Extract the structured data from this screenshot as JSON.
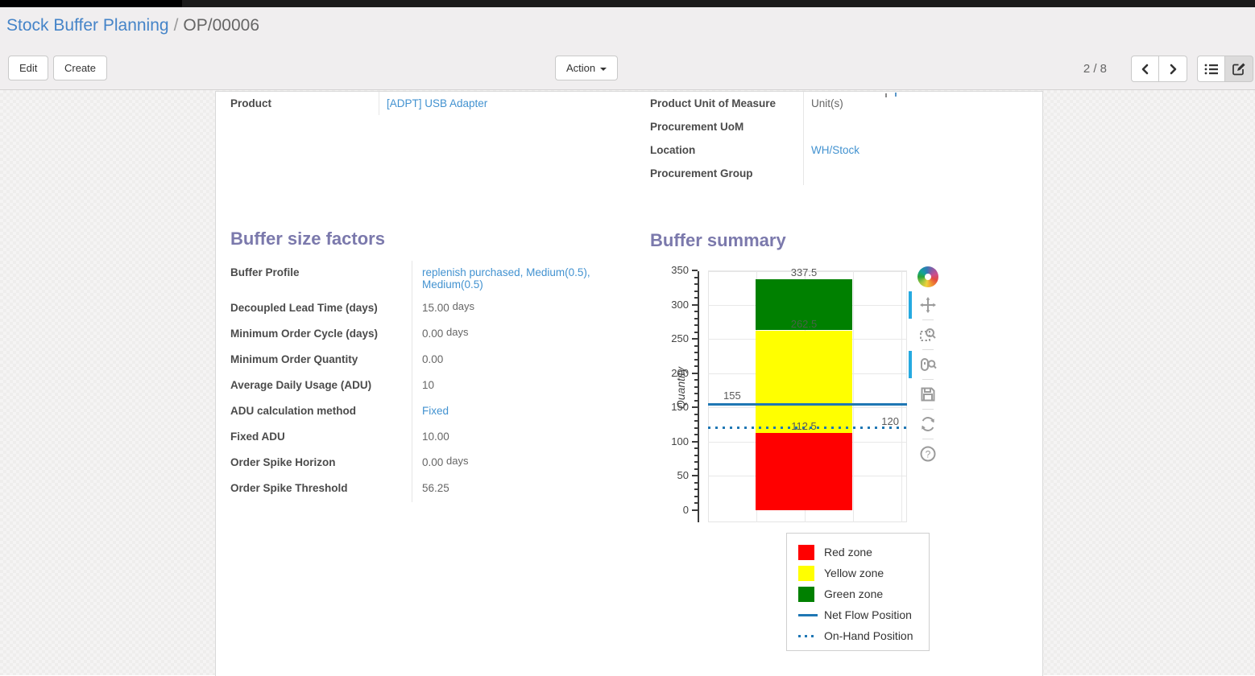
{
  "breadcrumb": {
    "parent": "Stock Buffer Planning",
    "separator": "/",
    "current": "OP/00006"
  },
  "control_panel": {
    "edit_label": "Edit",
    "create_label": "Create",
    "action_label": "Action",
    "pager": "2 / 8"
  },
  "form": {
    "left_fields": [
      {
        "label": "Product",
        "value": "[ADPT] USB Adapter",
        "link": true
      }
    ],
    "right_fields": [
      {
        "label": "Product Unit of Measure",
        "value": "Unit(s)",
        "link": false
      },
      {
        "label": "Procurement UoM",
        "value": "",
        "link": false
      },
      {
        "label": "Location",
        "value": "WH/Stock",
        "link": true
      },
      {
        "label": "Procurement Group",
        "value": "",
        "link": false
      }
    ]
  },
  "buffer_factors": {
    "title": "Buffer size factors",
    "rows": [
      {
        "label": "Buffer Profile",
        "value": "replenish purchased, Medium(0.5), Medium(0.5)",
        "link": true,
        "unit": ""
      },
      {
        "label": "Decoupled Lead Time (days)",
        "value": "15.00",
        "link": false,
        "unit": "days"
      },
      {
        "label": "Minimum Order Cycle (days)",
        "value": "0.00",
        "link": false,
        "unit": "days"
      },
      {
        "label": "Minimum Order Quantity",
        "value": "0.00",
        "link": false,
        "unit": ""
      },
      {
        "label": "Average Daily Usage (ADU)",
        "value": "10",
        "link": false,
        "unit": ""
      },
      {
        "label": "ADU calculation method",
        "value": "Fixed",
        "link": true,
        "unit": ""
      },
      {
        "label": "Fixed ADU",
        "value": "10.00",
        "link": false,
        "unit": ""
      },
      {
        "label": "Order Spike Horizon",
        "value": "0.00",
        "link": false,
        "unit": "days"
      },
      {
        "label": "Order Spike Threshold",
        "value": "56.25",
        "link": false,
        "unit": ""
      }
    ]
  },
  "buffer_summary": {
    "title": "Buffer summary"
  },
  "chart_data": {
    "type": "bar",
    "title": "Buffer summary",
    "xlabel": "",
    "ylabel": "Quantity",
    "ylim": [
      0,
      350
    ],
    "yticks": [
      0,
      50,
      100,
      150,
      200,
      250,
      300,
      350
    ],
    "minor_tick_step": 10,
    "grid": true,
    "zones": [
      {
        "name": "Red zone",
        "from": 0,
        "to": 112.5,
        "color": "#ff0000",
        "to_label": "112.5"
      },
      {
        "name": "Yellow zone",
        "from": 112.5,
        "to": 262.5,
        "color": "#ffff00",
        "to_label": "262.5"
      },
      {
        "name": "Green zone",
        "from": 262.5,
        "to": 337.5,
        "color": "#008000",
        "to_label": "337.5"
      }
    ],
    "lines": [
      {
        "name": "Net Flow Position",
        "value": 155,
        "label": "155",
        "style": "solid",
        "color": "#1f77b4",
        "label_side": "left"
      },
      {
        "name": "On-Hand Position",
        "value": 120,
        "label": "120",
        "style": "dotted",
        "color": "#1f77b4",
        "label_side": "right"
      }
    ],
    "legend": [
      {
        "label": "Red zone",
        "swatch": "box",
        "color": "#ff0000"
      },
      {
        "label": "Yellow zone",
        "swatch": "box",
        "color": "#ffff00"
      },
      {
        "label": "Green zone",
        "swatch": "box",
        "color": "#008000"
      },
      {
        "label": "Net Flow Position",
        "swatch": "line-solid",
        "color": "#1f77b4"
      },
      {
        "label": "On-Hand Position",
        "swatch": "line-dotted",
        "color": "#1f77b4"
      }
    ],
    "legend_position": "below-right",
    "toolbar_tools": [
      "bokeh-logo",
      "pan",
      "box-zoom",
      "wheel-zoom",
      "save",
      "reset",
      "help"
    ],
    "active_tools": [
      "pan",
      "wheel-zoom"
    ]
  },
  "colors": {
    "link": "#4292d0",
    "section_title": "#7b79ac",
    "net_flow_line": "#1f77b4",
    "red_zone": "#ff0000",
    "yellow_zone": "#ffff00",
    "green_zone": "#008000"
  }
}
